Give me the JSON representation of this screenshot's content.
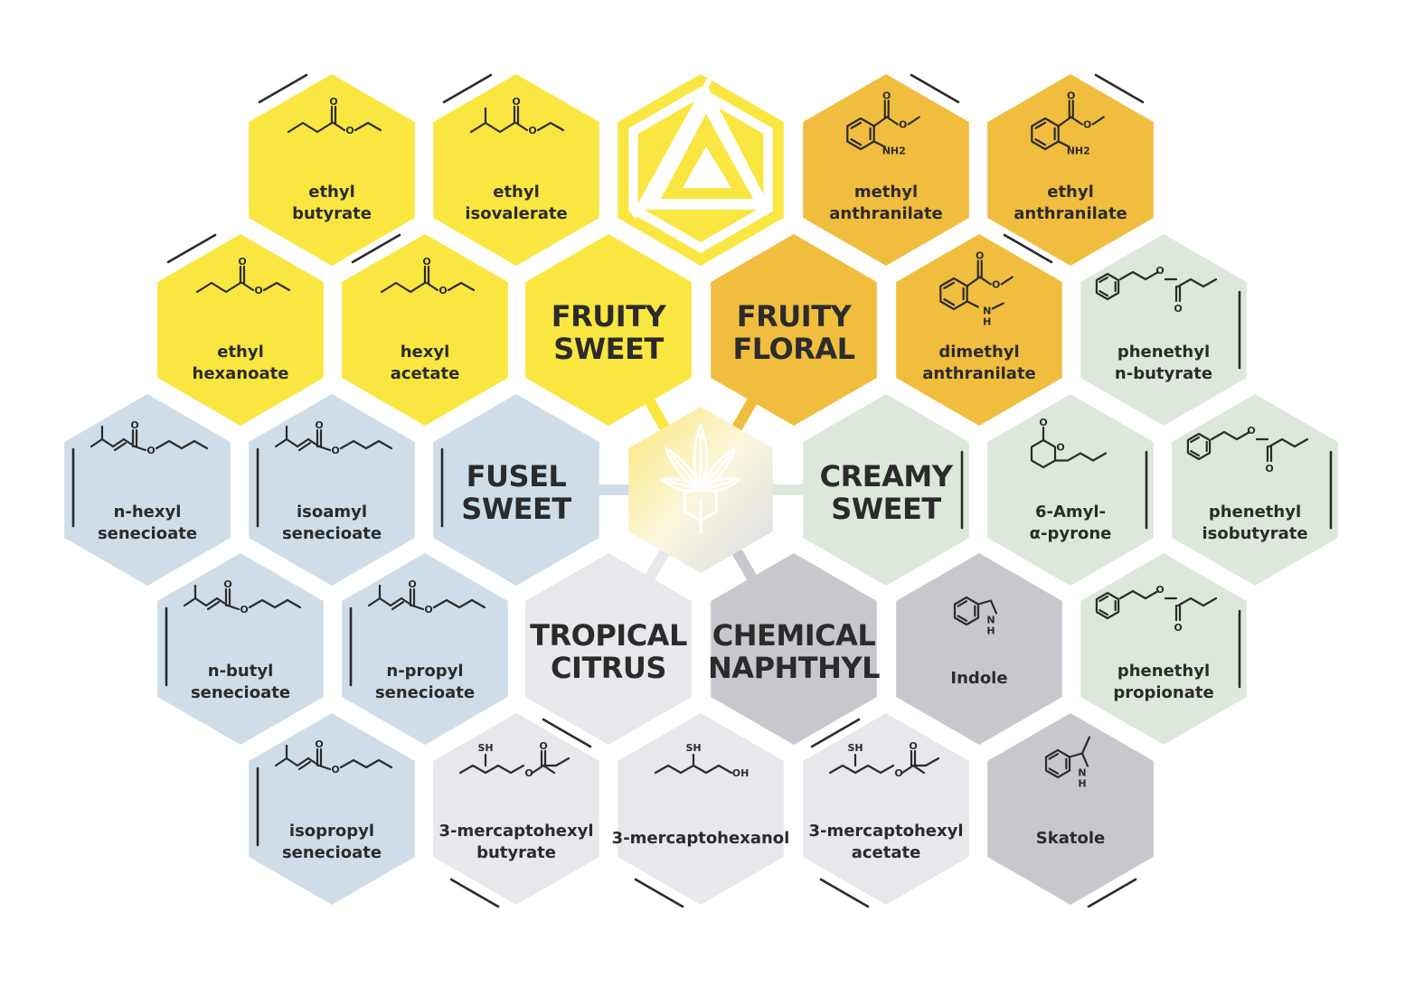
{
  "colors": {
    "fruity_sweet": "#fae640",
    "fruity_floral": "#f0bd3e",
    "fusel_sweet": "#cfdde8",
    "creamy_sweet": "#dce8da",
    "tropical_citrus": "#e7e7ec",
    "chemical_naphthyl": "#c7c7ce",
    "text": "#2b2b2b",
    "connector": "#dde7ee"
  },
  "logo": {
    "name": "logo-icon"
  },
  "center": {
    "name": "cannabis-leaf-icon"
  },
  "categories": [
    {
      "id": "fruity-sweet",
      "line1": "FRUITY",
      "line2": "SWEET"
    },
    {
      "id": "fruity-floral",
      "line1": "FRUITY",
      "line2": "FLORAL"
    },
    {
      "id": "fusel-sweet",
      "line1": "FUSEL",
      "line2": "SWEET"
    },
    {
      "id": "creamy-sweet",
      "line1": "CREAMY",
      "line2": "SWEET"
    },
    {
      "id": "tropical-citrus",
      "line1": "TROPICAL",
      "line2": "CITRUS"
    },
    {
      "id": "chemical-naphthyl",
      "line1": "CHEMICAL",
      "line2": "NAPHTHYL"
    }
  ],
  "compounds": [
    {
      "id": "ethyl-butyrate",
      "group": "fruity_sweet",
      "line1": "ethyl",
      "line2": "butyrate",
      "structure": "ester-chain"
    },
    {
      "id": "ethyl-isovalerate",
      "group": "fruity_sweet",
      "line1": "ethyl",
      "line2": "isovalerate",
      "structure": "ester-branched"
    },
    {
      "id": "methyl-anthranilate",
      "group": "fruity_floral",
      "line1": "methyl",
      "line2": "anthranilate",
      "structure": "anthranilate",
      "atom_label": "NH2"
    },
    {
      "id": "ethyl-anthranilate",
      "group": "fruity_floral",
      "line1": "ethyl",
      "line2": "anthranilate",
      "structure": "anthranilate",
      "atom_label": "NH2"
    },
    {
      "id": "ethyl-hexanoate",
      "group": "fruity_sweet",
      "line1": "ethyl",
      "line2": "hexanoate",
      "structure": "ester-chain"
    },
    {
      "id": "hexyl-acetate",
      "group": "fruity_sweet",
      "line1": "hexyl",
      "line2": "acetate",
      "structure": "ester-chain"
    },
    {
      "id": "dimethyl-anthranilate",
      "group": "fruity_floral",
      "line1": "dimethyl",
      "line2": "anthranilate",
      "structure": "anthranilate",
      "atom_label": "N"
    },
    {
      "id": "phenethyl-n-butyrate",
      "group": "creamy_sweet",
      "line1": "phenethyl",
      "line2": "n-butyrate",
      "structure": "phenethyl-ester"
    },
    {
      "id": "n-hexyl-senecioate",
      "group": "fusel_sweet",
      "line1": "n-hexyl",
      "line2": "senecioate",
      "structure": "senecioate"
    },
    {
      "id": "isoamyl-senecioate",
      "group": "fusel_sweet",
      "line1": "isoamyl",
      "line2": "senecioate",
      "structure": "senecioate"
    },
    {
      "id": "6-amyl-a-pyrone",
      "group": "creamy_sweet",
      "line1": "6-Amyl-",
      "line2": "α-pyrone",
      "structure": "pyrone"
    },
    {
      "id": "phenethyl-isobutyrate",
      "group": "creamy_sweet",
      "line1": "phenethyl",
      "line2": "isobutyrate",
      "structure": "phenethyl-ester"
    },
    {
      "id": "n-butyl-senecioate",
      "group": "fusel_sweet",
      "line1": "n-butyl",
      "line2": "senecioate",
      "structure": "senecioate"
    },
    {
      "id": "n-propyl-senecioate",
      "group": "fusel_sweet",
      "line1": "n-propyl",
      "line2": "senecioate",
      "structure": "senecioate"
    },
    {
      "id": "indole",
      "group": "chemical_naphthyl",
      "line1": "Indole",
      "line2": "",
      "structure": "indole",
      "atom_label": "H"
    },
    {
      "id": "phenethyl-propionate",
      "group": "creamy_sweet",
      "line1": "phenethyl",
      "line2": "propionate",
      "structure": "phenethyl-ester"
    },
    {
      "id": "isopropyl-senecioate",
      "group": "fusel_sweet",
      "line1": "isopropyl",
      "line2": "senecioate",
      "structure": "senecioate"
    },
    {
      "id": "3-mercaptohexyl-butyrate",
      "group": "tropical_citrus",
      "line1": "3-mercaptohexyl",
      "line2": "butyrate",
      "structure": "thiol-chain",
      "atom_label": "SH"
    },
    {
      "id": "3-mercaptohexanol",
      "group": "tropical_citrus",
      "line1": "3-mercaptohexanol",
      "line2": "",
      "structure": "thiol-alcohol",
      "atom_label": "SH",
      "atom_label_2": "OH"
    },
    {
      "id": "3-mercaptohexyl-acetate",
      "group": "tropical_citrus",
      "line1": "3-mercaptohexyl",
      "line2": "acetate",
      "structure": "thiol-chain",
      "atom_label": "SH"
    },
    {
      "id": "skatole",
      "group": "chemical_naphthyl",
      "line1": "Skatole",
      "line2": "",
      "structure": "skatole",
      "atom_label": "H"
    }
  ],
  "atom_labels": {
    "oxygen": "O",
    "nitrogen": "N",
    "hydrogen": "H",
    "nh2": "NH2"
  }
}
